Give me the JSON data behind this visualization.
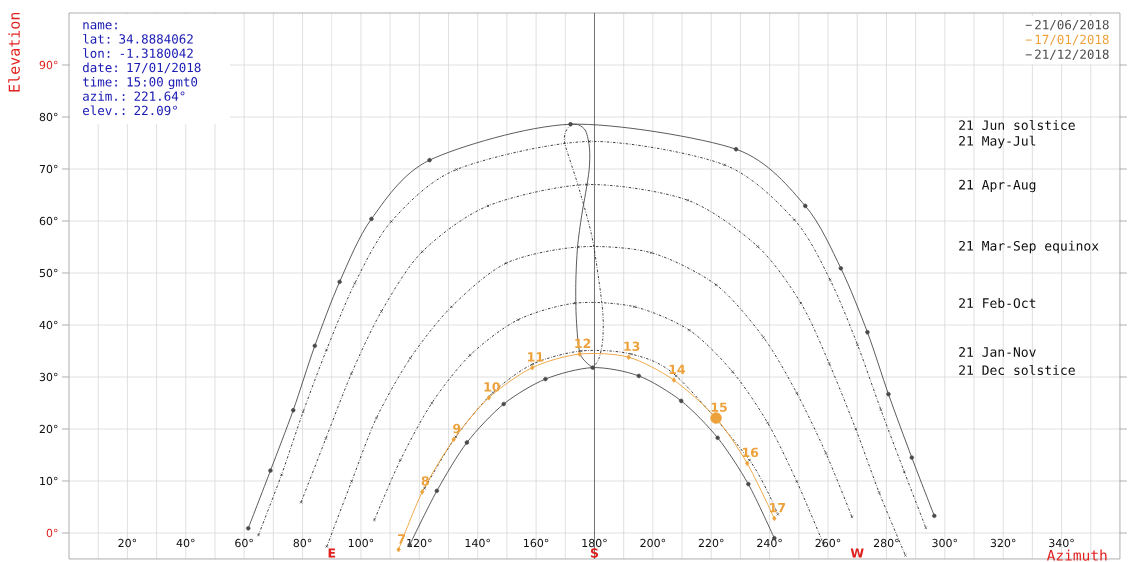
{
  "chart_data": {
    "type": "line",
    "xlabel": "Azimuth",
    "ylabel": "Elevation",
    "xlim": [
      0,
      360
    ],
    "ylim": [
      -5,
      100
    ],
    "xticks": [
      {
        "value": 10,
        "label": null
      },
      {
        "value": 20,
        "label": "20°"
      },
      {
        "value": 30,
        "label": null
      },
      {
        "value": 40,
        "label": "40°"
      },
      {
        "value": 50,
        "label": null
      },
      {
        "value": 60,
        "label": "60°"
      },
      {
        "value": 70,
        "label": null
      },
      {
        "value": 80,
        "label": "80°"
      },
      {
        "value": 100,
        "label": "100°"
      },
      {
        "value": 110,
        "label": null
      },
      {
        "value": 120,
        "label": "120°"
      },
      {
        "value": 130,
        "label": null
      },
      {
        "value": 140,
        "label": "140°"
      },
      {
        "value": 150,
        "label": null
      },
      {
        "value": 160,
        "label": "160°"
      },
      {
        "value": 170,
        "label": null
      },
      {
        "value": 180,
        "label": "180°"
      },
      {
        "value": 190,
        "label": null
      },
      {
        "value": 200,
        "label": "200°"
      },
      {
        "value": 210,
        "label": null
      },
      {
        "value": 220,
        "label": "220°"
      },
      {
        "value": 230,
        "label": null
      },
      {
        "value": 240,
        "label": "240°"
      },
      {
        "value": 250,
        "label": null
      },
      {
        "value": 260,
        "label": "260°"
      },
      {
        "value": 280,
        "label": "280°"
      },
      {
        "value": 290,
        "label": null
      },
      {
        "value": 300,
        "label": "300°"
      },
      {
        "value": 310,
        "label": null
      },
      {
        "value": 320,
        "label": "320°"
      },
      {
        "value": 330,
        "label": null
      },
      {
        "value": 340,
        "label": "340°"
      },
      {
        "value": 350,
        "label": null
      }
    ],
    "yticks": [
      {
        "value": 0,
        "label": "0°"
      },
      {
        "value": 10,
        "label": "10°"
      },
      {
        "value": 20,
        "label": "20°"
      },
      {
        "value": 30,
        "label": "30°"
      },
      {
        "value": 40,
        "label": "40°"
      },
      {
        "value": 50,
        "label": "50°"
      },
      {
        "value": 60,
        "label": "60°"
      },
      {
        "value": 70,
        "label": "70°"
      },
      {
        "value": 80,
        "label": "80°"
      },
      {
        "value": 90,
        "label": "90°"
      }
    ],
    "grid": true,
    "legend": "top right",
    "series": [
      {
        "color": "#2a2a2a",
        "line_style": "dotted",
        "marker": "cross",
        "x": [
          64.9,
          72.8,
          80.2,
          88.2,
          97.9,
          110.4,
          132.7,
          178.3,
          224.5,
          248.5,
          260.7,
          270.1,
          278.1,
          286.1,
          293.5
        ],
        "values": [
          -0.4,
          11.2,
          23.3,
          35.2,
          48.0,
          59.9,
          69.9,
          75.3,
          70.8,
          60.2,
          48.7,
          36.2,
          23.7,
          11.8,
          1.0
        ]
      },
      {
        "color": "#2a2a2a",
        "line_style": "dotted",
        "marker": "cross",
        "x": [
          79.5,
          88.0,
          96.7,
          107.0,
          121.0,
          143.5,
          177.4,
          211.9,
          235.9,
          250.7,
          260.4,
          269.5,
          277.5,
          286.5
        ],
        "values": [
          5.9,
          18.2,
          30.6,
          42.6,
          54.1,
          62.9,
          67.0,
          64.0,
          55.1,
          44.2,
          32.6,
          20.0,
          7.8,
          -4.3
        ]
      },
      {
        "color": "#2a2a2a",
        "line_style": "dotted",
        "marker": "cross",
        "x": [
          88.3,
          96.8,
          105.3,
          116.9,
          131.0,
          149.8,
          174.5,
          199.4,
          221.7,
          237.9,
          249.3,
          259.3,
          268.2
        ],
        "values": [
          -2.6,
          9.9,
          22.1,
          33.6,
          43.5,
          51.9,
          55.0,
          53.9,
          47.7,
          37.6,
          26.9,
          15.3,
          3.1
        ]
      },
      {
        "color": "#2a2a2a",
        "line_style": "dotted",
        "marker": "cross",
        "x": [
          104.6,
          113.5,
          124.3,
          137.4,
          153.8,
          173.4,
          193.7,
          212.5,
          227.3,
          239.3,
          249.3,
          258.5
        ],
        "values": [
          2.5,
          14.0,
          25.0,
          34.2,
          41.0,
          44.2,
          43.5,
          39.0,
          31.0,
          21.2,
          9.9,
          -2.2
        ]
      },
      {
        "color": "#2a2a2a",
        "line_style": "dotted",
        "marker": "cross",
        "x": [
          121.8,
          132.5,
          145.2,
          158.9,
          175.4,
          192.6,
          208.0,
          233.1,
          242.8
        ],
        "values": [
          8.6,
          18.5,
          27.0,
          32.5,
          35.0,
          34.4,
          30.2,
          14.0,
          3.6
        ]
      },
      {
        "color": "#2a2a2a",
        "line_style": "dotted",
        "marker": "none",
        "x": [
          171.8,
          170.0,
          169.8,
          172.0,
          174.4,
          178.9,
          181.4,
          182.9,
          182.8,
          181.5,
          179.4
        ],
        "values": [
          78.6,
          77.0,
          75.0,
          71.0,
          66.8,
          57.6,
          49.0,
          42.0,
          37.0,
          33.5,
          31.8
        ]
      },
      {
        "color": "#4a4a4a",
        "line_style": "solid",
        "marker": "none",
        "x": [
          179.4,
          175.1,
          173.8,
          173.6,
          174.2,
          175.6,
          177.0,
          178.2,
          178.3,
          177.0,
          174.5,
          171.8
        ],
        "values": [
          31.8,
          34.4,
          41.0,
          48.0,
          55.0,
          61.0,
          65.5,
          70.0,
          74.0,
          77.3,
          78.5,
          78.6
        ]
      },
      {
        "name": "21/06/2018",
        "color": "#4a4a4a",
        "line_style": "solid",
        "marker": "circle",
        "x": [
          61.4,
          69.0,
          76.8,
          84.2,
          92.7,
          103.6,
          123.5,
          171.8,
          228.5,
          252.2,
          264.4,
          273.5,
          280.7,
          288.7,
          296.4
        ],
        "values": [
          0.9,
          12.0,
          23.6,
          36.0,
          48.3,
          60.4,
          71.7,
          78.6,
          73.8,
          62.9,
          50.9,
          38.6,
          26.7,
          14.5,
          3.3
        ]
      },
      {
        "name": "17/01/2018",
        "color": "#eda13a",
        "line_style": "solid",
        "marker": "diamond",
        "x": [
          112.9,
          121.0,
          131.8,
          143.8,
          158.7,
          174.9,
          191.7,
          207.2,
          221.64,
          232.3,
          241.6
        ],
        "values": [
          -3.2,
          7.9,
          18.0,
          26.0,
          31.8,
          34.4,
          33.8,
          29.4,
          22.09,
          13.4,
          2.8
        ]
      },
      {
        "name": "21/12/2018",
        "color": "#4a4a4a",
        "line_style": "solid",
        "marker": "circle",
        "x": [
          116.7,
          126.0,
          136.3,
          148.9,
          163.2,
          179.4,
          195.2,
          209.7,
          222.2,
          232.7,
          241.6
        ],
        "values": [
          -2.3,
          8.1,
          17.4,
          24.8,
          29.6,
          31.8,
          30.2,
          25.4,
          18.3,
          9.4,
          -1.0
        ]
      },
      {
        "type": "scatter",
        "color": "#eda13a",
        "marker": "circle",
        "x": [
          221.64
        ],
        "values": [
          22.09
        ]
      }
    ],
    "ref_lines": [
      {
        "axis": "x",
        "value": 90,
        "label": "E",
        "color": "#d2d2d2"
      },
      {
        "axis": "x",
        "value": 180,
        "label": "S",
        "color": "#555555"
      },
      {
        "axis": "x",
        "value": 270,
        "label": "W",
        "color": "#d2d2d2"
      }
    ],
    "annotations": [
      "name:",
      "lat: 34.8884062",
      "lon: -1.3180042",
      "date: 17/01/2018",
      "time: 15:00 gmt0",
      "azim.: 221.64°",
      "elev.: 22.09°",
      "21 Jun solstice",
      "21 May-Jul",
      "21 Apr-Aug",
      "21 Mar-Sep equinox",
      "21 Feb-Oct",
      "21 Jan-Nov",
      "21 Dec solstice",
      {
        "text": "7",
        "x": 112.9,
        "y": -3.2
      },
      {
        "text": "8",
        "x": 121.0,
        "y": 7.9
      },
      {
        "text": "9",
        "x": 131.8,
        "y": 18.0
      },
      {
        "text": "10",
        "x": 143.8,
        "y": 26.0
      },
      {
        "text": "11",
        "x": 158.7,
        "y": 31.8
      },
      {
        "text": "12",
        "x": 174.9,
        "y": 34.4
      },
      {
        "text": "13",
        "x": 191.7,
        "y": 33.8
      },
      {
        "text": "14",
        "x": 207.2,
        "y": 29.4
      },
      {
        "text": "15",
        "x": 221.64,
        "y": 22.09
      },
      {
        "text": "16",
        "x": 232.3,
        "y": 13.4
      },
      {
        "text": "17",
        "x": 241.6,
        "y": 2.8
      }
    ]
  }
}
